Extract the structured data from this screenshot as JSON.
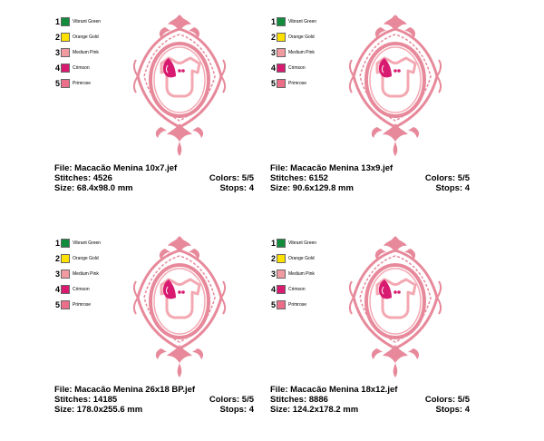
{
  "colors": {
    "vibrant_green": "#138b3c",
    "orange_gold": "#ffe100",
    "medium_pink": "#f19aa1",
    "crimson": "#d81b70",
    "primrose": "#ec6f8a",
    "frame": "#e7899a",
    "bodysuit": "#f3a8b2"
  },
  "panels": [
    {
      "legend": [
        {
          "num": "1",
          "name": "Vibrant Green"
        },
        {
          "num": "2",
          "name": "Orange Gold"
        },
        {
          "num": "3",
          "name": "Medium Pink"
        },
        {
          "num": "4",
          "name": "Crimson"
        },
        {
          "num": "5",
          "name": "Primrose"
        }
      ],
      "file": "File: Macacão Menina 10x7.jef",
      "stitches": "Stitches: 4526",
      "size": "Size: 68.4x98.0 mm",
      "colors_count": "Colors: 5/5",
      "stops": "Stops: 4"
    },
    {
      "legend": [
        {
          "num": "1",
          "name": "Vibrant Green"
        },
        {
          "num": "2",
          "name": "Orange Gold"
        },
        {
          "num": "3",
          "name": "Medium Pink"
        },
        {
          "num": "4",
          "name": "Crimson"
        },
        {
          "num": "5",
          "name": "Primrose"
        }
      ],
      "file": "File: Macacão Menina 13x9.jef",
      "stitches": "Stitches: 6152",
      "size": "Size: 90.6x129.8 mm",
      "colors_count": "Colors: 5/5",
      "stops": "Stops: 4"
    },
    {
      "legend": [
        {
          "num": "1",
          "name": "Vibrant Green"
        },
        {
          "num": "2",
          "name": "Orange Gold"
        },
        {
          "num": "3",
          "name": "Medium Pink"
        },
        {
          "num": "4",
          "name": "Crimson"
        },
        {
          "num": "5",
          "name": "Primrose"
        }
      ],
      "file": "File: Macacão Menina 26x18 BP.jef",
      "stitches": "Stitches: 14185",
      "size": "Size: 178.0x255.6 mm",
      "colors_count": "Colors: 5/5",
      "stops": "Stops: 4"
    },
    {
      "legend": [
        {
          "num": "1",
          "name": "Vibrant Green"
        },
        {
          "num": "2",
          "name": "Orange Gold"
        },
        {
          "num": "3",
          "name": "Medium Pink"
        },
        {
          "num": "4",
          "name": "Crimson"
        },
        {
          "num": "5",
          "name": "Primrose"
        }
      ],
      "file": "File: Macacão Menina 18x12.jef",
      "stitches": "Stitches: 8886",
      "size": "Size: 124.2x178.2 mm",
      "colors_count": "Colors: 5/5",
      "stops": "Stops: 4"
    }
  ]
}
